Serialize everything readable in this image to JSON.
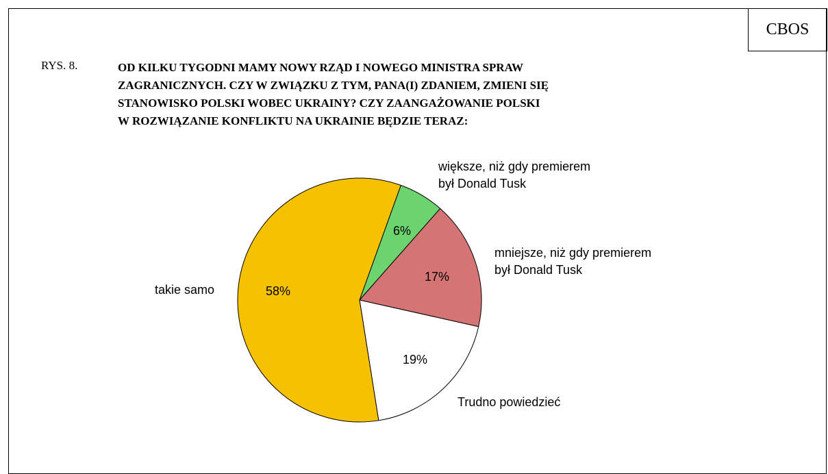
{
  "chart_data": {
    "type": "pie",
    "source": "CBOS",
    "figure_label": "RYS. 8.",
    "title": "OD KILKU TYGODNI MAMY NOWY RZĄD I NOWEGO MINISTRA SPRAW\nZAGRANICZNYCH. CZY W ZWIĄZKU Z TYM, PANA(I) ZDANIEM, ZMIENI SIĘ\nSTANOWISKO POLSKI WOBEC UKRAINY? CZY ZAANGAŻOWANIE POLSKI\nW ROZWIĄZANIE KONFLIKTU NA UKRAINIE BĘDZIE TERAZ:",
    "categories": [
      "większe, niż gdy premierem\nbył Donald Tusk",
      "mniejsze, niż gdy premierem\nbył Donald Tusk",
      "Trudno powiedzieć",
      "takie samo"
    ],
    "values": [
      6,
      17,
      19,
      58
    ],
    "value_labels": [
      "6%",
      "17%",
      "19%",
      "58%"
    ],
    "colors": [
      "#6cd46e",
      "#d57474",
      "#ffffff",
      "#f6c100"
    ]
  }
}
